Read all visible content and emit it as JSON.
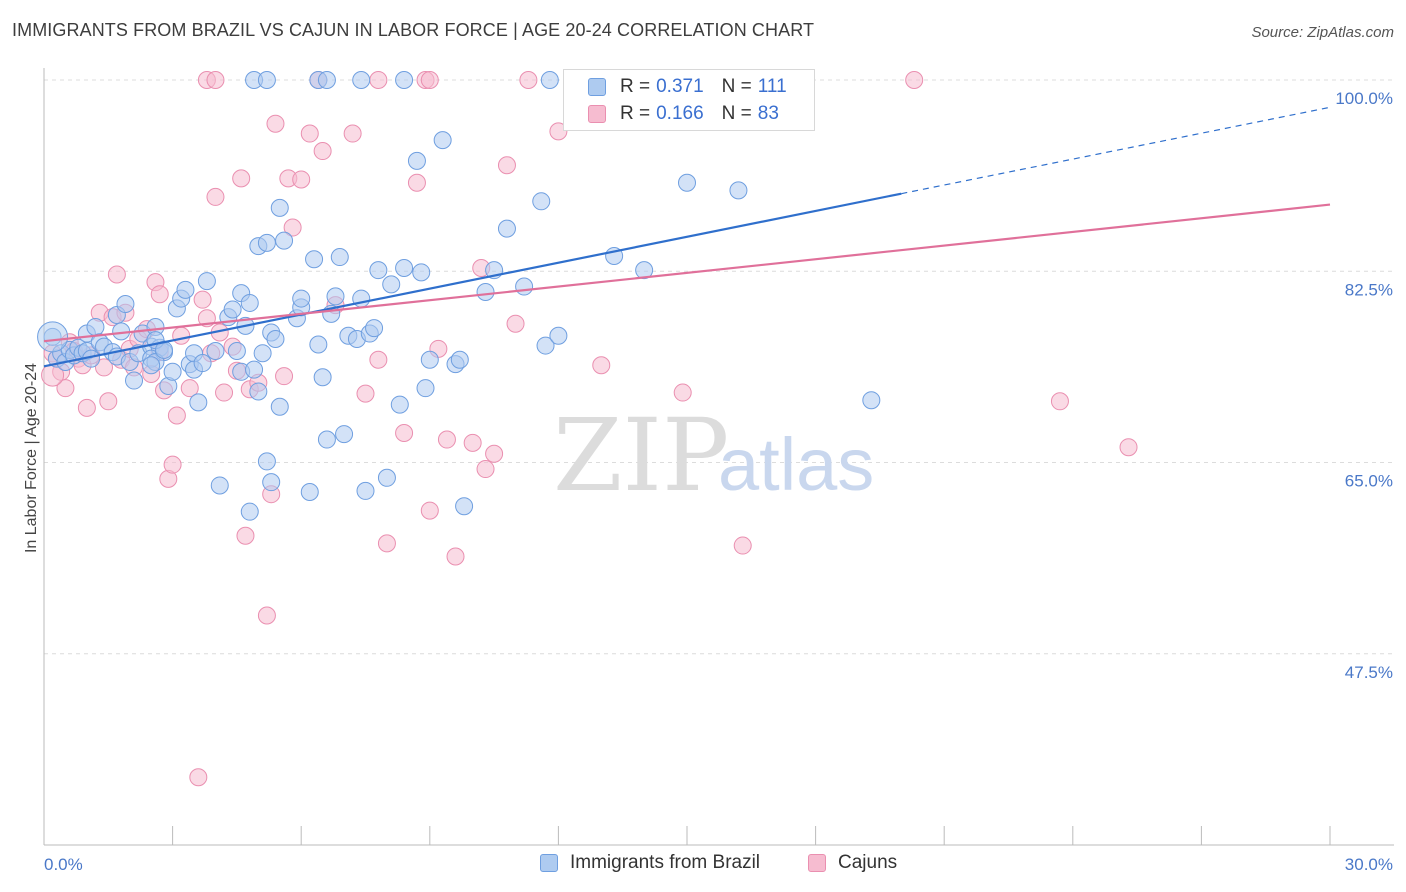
{
  "title": "IMMIGRANTS FROM BRAZIL VS CAJUN IN LABOR FORCE | AGE 20-24 CORRELATION CHART",
  "source": "Source: ZipAtlas.com",
  "watermark": {
    "zip": "ZIP",
    "atlas": "atlas"
  },
  "legend": {
    "brazil": {
      "r_label": "R =",
      "r_value": "0.371",
      "n_label": "N =",
      "n_value": "111"
    },
    "cajun": {
      "r_label": "R =",
      "r_value": "0.166",
      "n_label": "N =",
      "n_value": "83"
    }
  },
  "bottom_legend": {
    "brazil": "Immigrants from Brazil",
    "cajun": "Cajuns"
  },
  "colors": {
    "brazil_fill": "#aecbf0",
    "brazil_stroke": "#6f9fe0",
    "brazil_line": "#2f6fcc",
    "cajun_fill": "#f6bcd0",
    "cajun_stroke": "#ea8fb0",
    "cajun_line": "#e0709a",
    "tick_text": "#4a78c8",
    "grid": "#dcdcdc"
  },
  "chart_data": {
    "type": "scatter",
    "xlabel": "",
    "ylabel": "In Labor Force | Age 20-24",
    "xlim": [
      0,
      30
    ],
    "ylim": [
      30,
      100
    ],
    "x_tick_labels": [
      "0.0%",
      "30.0%"
    ],
    "y_ticks": [
      47.5,
      65.0,
      82.5,
      100.0
    ],
    "y_tick_labels": [
      "47.5%",
      "65.0%",
      "82.5%",
      "100.0%"
    ],
    "grid": true,
    "legend_position": "top-center",
    "series": [
      {
        "name": "Immigrants from Brazil",
        "trend": {
          "x0": 0.0,
          "y0": 73.8,
          "x1": 20.0,
          "y1": 89.6,
          "dashed_to_x": 30.0,
          "dashed_to_y": 97.5
        },
        "points": [
          [
            0.2,
            76.5
          ],
          [
            0.3,
            74.5
          ],
          [
            0.4,
            75.0
          ],
          [
            0.5,
            74.2
          ],
          [
            0.6,
            75.3
          ],
          [
            0.7,
            74.8
          ],
          [
            0.8,
            75.5
          ],
          [
            0.9,
            75.0
          ],
          [
            1.0,
            75.2
          ],
          [
            1.1,
            74.5
          ],
          [
            1.0,
            76.8
          ],
          [
            1.2,
            77.4
          ],
          [
            1.3,
            76.0
          ],
          [
            1.4,
            75.6
          ],
          [
            1.6,
            75.1
          ],
          [
            1.7,
            74.7
          ],
          [
            1.8,
            77.0
          ],
          [
            1.7,
            78.5
          ],
          [
            1.9,
            79.5
          ],
          [
            2.0,
            74.2
          ],
          [
            2.1,
            72.5
          ],
          [
            2.2,
            75.0
          ],
          [
            2.3,
            76.8
          ],
          [
            2.5,
            75.6
          ],
          [
            2.6,
            77.4
          ],
          [
            2.7,
            75.5
          ],
          [
            2.5,
            74.5
          ],
          [
            2.8,
            75.1
          ],
          [
            2.6,
            74.2
          ],
          [
            2.5,
            73.9
          ],
          [
            2.6,
            76.2
          ],
          [
            2.8,
            75.3
          ],
          [
            2.9,
            72.0
          ],
          [
            3.0,
            73.3
          ],
          [
            3.1,
            79.1
          ],
          [
            3.2,
            80.0
          ],
          [
            3.3,
            80.8
          ],
          [
            3.4,
            74.0
          ],
          [
            3.5,
            75.0
          ],
          [
            3.5,
            73.5
          ],
          [
            3.6,
            70.5
          ],
          [
            3.7,
            74.1
          ],
          [
            3.8,
            81.6
          ],
          [
            4.0,
            75.2
          ],
          [
            4.1,
            62.9
          ],
          [
            4.3,
            78.3
          ],
          [
            4.4,
            79.0
          ],
          [
            4.5,
            75.2
          ],
          [
            4.6,
            73.3
          ],
          [
            4.6,
            80.5
          ],
          [
            4.7,
            77.5
          ],
          [
            4.8,
            79.6
          ],
          [
            4.9,
            73.5
          ],
          [
            5.0,
            71.5
          ],
          [
            5.1,
            75.0
          ],
          [
            5.2,
            65.1
          ],
          [
            5.3,
            63.2
          ],
          [
            5.3,
            76.9
          ],
          [
            5.4,
            76.3
          ],
          [
            5.5,
            70.1
          ],
          [
            4.8,
            60.5
          ],
          [
            5.0,
            84.8
          ],
          [
            5.2,
            85.1
          ],
          [
            5.5,
            88.3
          ],
          [
            5.6,
            85.3
          ],
          [
            5.9,
            78.2
          ],
          [
            6.0,
            79.2
          ],
          [
            6.2,
            62.3
          ],
          [
            6.0,
            80.0
          ],
          [
            6.3,
            83.6
          ],
          [
            6.4,
            75.8
          ],
          [
            6.5,
            72.8
          ],
          [
            6.6,
            67.1
          ],
          [
            6.7,
            78.6
          ],
          [
            6.8,
            80.2
          ],
          [
            6.9,
            83.8
          ],
          [
            7.0,
            67.6
          ],
          [
            7.1,
            76.6
          ],
          [
            7.3,
            76.3
          ],
          [
            7.4,
            80.0
          ],
          [
            7.5,
            62.4
          ],
          [
            7.6,
            76.8
          ],
          [
            7.7,
            77.3
          ],
          [
            7.8,
            82.6
          ],
          [
            8.0,
            63.6
          ],
          [
            8.1,
            81.3
          ],
          [
            8.3,
            70.3
          ],
          [
            8.4,
            82.8
          ],
          [
            8.7,
            92.6
          ],
          [
            8.8,
            82.4
          ],
          [
            8.9,
            71.8
          ],
          [
            9.0,
            74.4
          ],
          [
            9.3,
            94.5
          ],
          [
            9.6,
            74.0
          ],
          [
            9.7,
            74.4
          ],
          [
            9.8,
            61.0
          ],
          [
            10.3,
            80.6
          ],
          [
            10.5,
            82.6
          ],
          [
            10.8,
            86.4
          ],
          [
            11.2,
            81.1
          ],
          [
            11.6,
            88.9
          ],
          [
            11.7,
            75.7
          ],
          [
            12.0,
            76.6
          ],
          [
            13.3,
            83.9
          ],
          [
            14.0,
            82.6
          ],
          [
            15.0,
            90.6
          ],
          [
            16.2,
            89.9
          ],
          [
            19.3,
            70.7
          ],
          [
            4.9,
            100.0
          ],
          [
            5.2,
            100.0
          ],
          [
            6.4,
            100.0
          ],
          [
            6.6,
            100.0
          ],
          [
            7.4,
            100.0
          ],
          [
            8.4,
            100.0
          ],
          [
            11.8,
            100.0
          ]
        ]
      },
      {
        "name": "Cajuns",
        "trend": {
          "x0": 0.0,
          "y0": 76.1,
          "x1": 30.0,
          "y1": 88.6
        },
        "points": [
          [
            0.2,
            75.0
          ],
          [
            0.3,
            74.5
          ],
          [
            0.4,
            73.3
          ],
          [
            0.5,
            71.8
          ],
          [
            0.6,
            76.0
          ],
          [
            0.7,
            75.2
          ],
          [
            0.8,
            74.5
          ],
          [
            0.9,
            73.9
          ],
          [
            1.0,
            70.0
          ],
          [
            1.1,
            74.8
          ],
          [
            1.3,
            78.7
          ],
          [
            1.4,
            73.7
          ],
          [
            1.5,
            70.6
          ],
          [
            1.6,
            78.3
          ],
          [
            1.7,
            82.2
          ],
          [
            1.8,
            74.4
          ],
          [
            1.9,
            78.7
          ],
          [
            2.0,
            75.4
          ],
          [
            2.1,
            73.7
          ],
          [
            2.2,
            76.3
          ],
          [
            2.4,
            77.2
          ],
          [
            2.5,
            73.1
          ],
          [
            2.7,
            75.1
          ],
          [
            2.6,
            81.5
          ],
          [
            2.7,
            80.4
          ],
          [
            2.8,
            71.6
          ],
          [
            2.9,
            63.5
          ],
          [
            3.0,
            64.8
          ],
          [
            3.1,
            69.3
          ],
          [
            3.2,
            76.6
          ],
          [
            3.4,
            71.8
          ],
          [
            3.6,
            36.2
          ],
          [
            3.7,
            79.9
          ],
          [
            3.8,
            78.2
          ],
          [
            3.9,
            75.0
          ],
          [
            4.0,
            89.3
          ],
          [
            4.1,
            76.9
          ],
          [
            4.2,
            71.4
          ],
          [
            4.4,
            75.6
          ],
          [
            4.5,
            73.4
          ],
          [
            4.6,
            91.0
          ],
          [
            4.7,
            58.3
          ],
          [
            4.8,
            71.7
          ],
          [
            5.0,
            72.3
          ],
          [
            5.2,
            51.0
          ],
          [
            5.3,
            62.1
          ],
          [
            5.4,
            96.0
          ],
          [
            5.6,
            72.9
          ],
          [
            5.7,
            91.0
          ],
          [
            5.8,
            86.5
          ],
          [
            6.0,
            90.9
          ],
          [
            6.2,
            95.1
          ],
          [
            6.5,
            93.5
          ],
          [
            6.8,
            79.4
          ],
          [
            7.2,
            95.1
          ],
          [
            7.5,
            71.3
          ],
          [
            7.8,
            74.4
          ],
          [
            8.0,
            57.6
          ],
          [
            8.4,
            67.7
          ],
          [
            8.7,
            90.6
          ],
          [
            9.0,
            60.6
          ],
          [
            9.2,
            75.4
          ],
          [
            9.4,
            67.1
          ],
          [
            9.6,
            56.4
          ],
          [
            10.0,
            66.8
          ],
          [
            10.2,
            82.8
          ],
          [
            10.3,
            64.4
          ],
          [
            10.5,
            65.8
          ],
          [
            10.8,
            92.2
          ],
          [
            11.0,
            77.7
          ],
          [
            12.0,
            95.3
          ],
          [
            13.0,
            73.9
          ],
          [
            14.9,
            71.4
          ],
          [
            16.3,
            57.4
          ],
          [
            23.7,
            70.6
          ],
          [
            25.3,
            66.4
          ],
          [
            3.8,
            100.0
          ],
          [
            4.0,
            100.0
          ],
          [
            6.4,
            100.0
          ],
          [
            7.8,
            100.0
          ],
          [
            8.9,
            100.0
          ],
          [
            9.0,
            100.0
          ],
          [
            11.3,
            100.0
          ],
          [
            20.3,
            100.0
          ]
        ]
      }
    ]
  }
}
